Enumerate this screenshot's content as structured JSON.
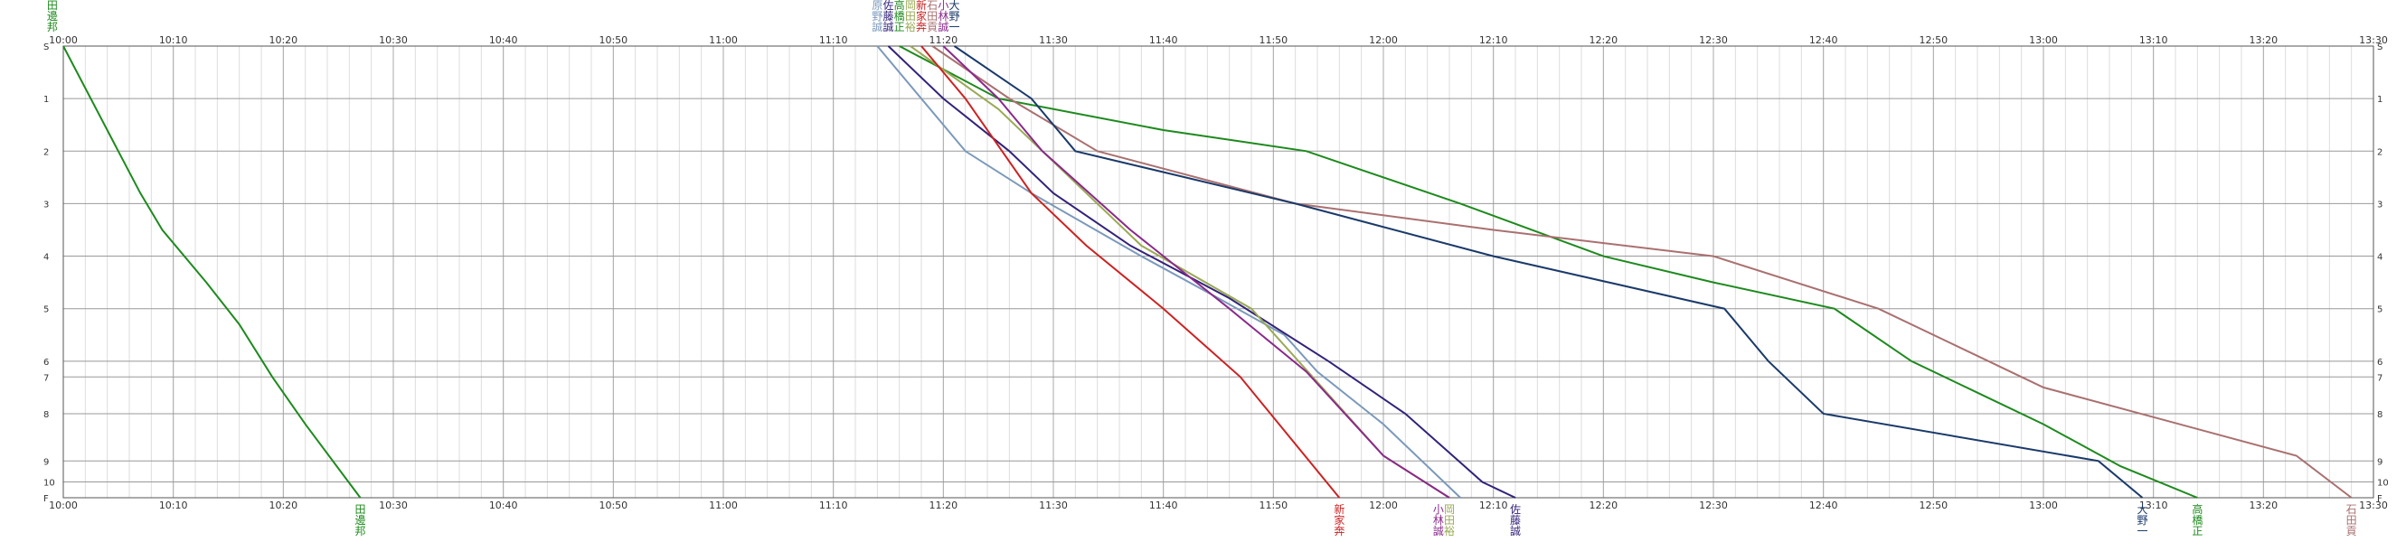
{
  "chart_data": {
    "type": "line",
    "title": "",
    "xlabel": "",
    "ylabel": "",
    "grid": true,
    "x_axis": {
      "unit": "time",
      "range": [
        "10:00",
        "13:30"
      ],
      "major_ticks": [
        "10:00",
        "10:10",
        "10:20",
        "10:30",
        "10:40",
        "10:50",
        "11:00",
        "11:10",
        "11:20",
        "11:30",
        "11:40",
        "11:50",
        "12:00",
        "12:10",
        "12:20",
        "12:30",
        "12:40",
        "12:50",
        "13:00",
        "13:10",
        "13:20",
        "13:30"
      ],
      "minor_step_minutes": 2
    },
    "stations": [
      {
        "label": "S",
        "pos": 0
      },
      {
        "label": "1",
        "pos": 1
      },
      {
        "label": "2",
        "pos": 2
      },
      {
        "label": "3",
        "pos": 3
      },
      {
        "label": "4",
        "pos": 4
      },
      {
        "label": "5",
        "pos": 5
      },
      {
        "label": "6",
        "pos": 6
      },
      {
        "label": "7",
        "pos": 6.3
      },
      {
        "label": "8",
        "pos": 7
      },
      {
        "label": "9",
        "pos": 7.9
      },
      {
        "label": "10",
        "pos": 8.3
      },
      {
        "label": "F",
        "pos": 8.6
      }
    ],
    "series": [
      {
        "name": "田邊邦",
        "color": "#1d8a1d",
        "start_label_time": "09:59",
        "end_label_time": "10:27",
        "points": [
          [
            "10:00",
            0
          ],
          [
            "10:05",
            2
          ],
          [
            "10:07",
            2.8
          ],
          [
            "10:09",
            3.5
          ],
          [
            "10:13",
            4.5
          ],
          [
            "10:16",
            5.3
          ],
          [
            "10:19",
            6.3
          ],
          [
            "10:22",
            7.2
          ],
          [
            "10:27",
            8.6
          ]
        ]
      },
      {
        "name": "原野誠",
        "color": "#7b99bb",
        "start_label_time": "11:14",
        "end_label_time": null,
        "points": [
          [
            "11:14",
            0
          ],
          [
            "11:22",
            2
          ],
          [
            "11:28",
            2.8
          ],
          [
            "11:38",
            4
          ],
          [
            "11:45",
            4.8
          ],
          [
            "11:51",
            5.5
          ],
          [
            "11:54",
            6.2
          ],
          [
            "12:00",
            7.2
          ],
          [
            "12:07",
            8.6
          ]
        ]
      },
      {
        "name": "佐藤誠",
        "color": "#33227a",
        "start_label_time": "11:15",
        "end_label_time": "12:12",
        "points": [
          [
            "11:15",
            0
          ],
          [
            "11:20",
            1
          ],
          [
            "11:26",
            2
          ],
          [
            "11:30",
            2.8
          ],
          [
            "11:37",
            3.8
          ],
          [
            "11:46",
            4.8
          ],
          [
            "11:55",
            6
          ],
          [
            "12:02",
            7
          ],
          [
            "12:09",
            8.3
          ],
          [
            "12:12",
            8.6
          ]
        ]
      },
      {
        "name": "高橋正",
        "color": "#1d8a1d",
        "start_label_time": "11:16",
        "end_label_time": "13:14",
        "points": [
          [
            "11:16",
            0
          ],
          [
            "11:25",
            1
          ],
          [
            "11:40",
            1.6
          ],
          [
            "11:53",
            2
          ],
          [
            "12:07",
            3
          ],
          [
            "12:20",
            4
          ],
          [
            "12:30",
            4.5
          ],
          [
            "12:41",
            5
          ],
          [
            "12:48",
            6
          ],
          [
            "12:54",
            6.6
          ],
          [
            "13:00",
            7.2
          ],
          [
            "13:07",
            8
          ],
          [
            "13:14",
            8.6
          ]
        ]
      },
      {
        "name": "岡田裕",
        "color": "#9aaa55",
        "start_label_time": "11:17",
        "end_label_time": "12:06",
        "points": [
          [
            "11:17",
            0
          ],
          [
            "11:25",
            1.2
          ],
          [
            "11:29",
            2
          ],
          [
            "11:38",
            3.8
          ],
          [
            "11:48",
            5
          ],
          [
            "11:54",
            6.4
          ],
          [
            "12:00",
            7.8
          ],
          [
            "12:06",
            8.6
          ]
        ]
      },
      {
        "name": "新家奔",
        "color": "#cc2222",
        "start_label_time": "11:18",
        "end_label_time": "11:56",
        "points": [
          [
            "11:18",
            0
          ],
          [
            "11:22",
            1
          ],
          [
            "11:28",
            2.8
          ],
          [
            "11:33",
            3.8
          ],
          [
            "11:40",
            5
          ],
          [
            "11:47",
            6.3
          ],
          [
            "11:56",
            8.6
          ]
        ]
      },
      {
        "name": "石田貢",
        "color": "#aa7070",
        "start_label_time": "11:19",
        "end_label_time": "13:28",
        "points": [
          [
            "11:19",
            0
          ],
          [
            "11:26",
            1
          ],
          [
            "11:34",
            2
          ],
          [
            "11:52",
            3
          ],
          [
            "12:10",
            3.5
          ],
          [
            "12:30",
            4
          ],
          [
            "12:45",
            5
          ],
          [
            "12:55",
            6
          ],
          [
            "13:00",
            6.5
          ],
          [
            "13:23",
            7.8
          ],
          [
            "13:28",
            8.6
          ]
        ]
      },
      {
        "name": "小林誠",
        "color": "#8a2a8a",
        "start_label_time": "11:20",
        "end_label_time": "12:05",
        "points": [
          [
            "11:20",
            0
          ],
          [
            "11:25",
            1
          ],
          [
            "11:29",
            2
          ],
          [
            "11:37",
            3.5
          ],
          [
            "11:46",
            5
          ],
          [
            "11:53",
            6.2
          ],
          [
            "12:00",
            7.8
          ],
          [
            "12:06",
            8.6
          ]
        ]
      },
      {
        "name": "大野一",
        "color": "#1a3a6a",
        "start_label_time": "11:21",
        "end_label_time": "13:09",
        "points": [
          [
            "11:21",
            0
          ],
          [
            "11:28",
            1
          ],
          [
            "11:32",
            2
          ],
          [
            "11:52",
            3
          ],
          [
            "12:10",
            4
          ],
          [
            "12:31",
            5
          ],
          [
            "12:35",
            6
          ],
          [
            "12:40",
            7
          ],
          [
            "13:05",
            7.9
          ],
          [
            "13:09",
            8.6
          ]
        ]
      }
    ]
  }
}
